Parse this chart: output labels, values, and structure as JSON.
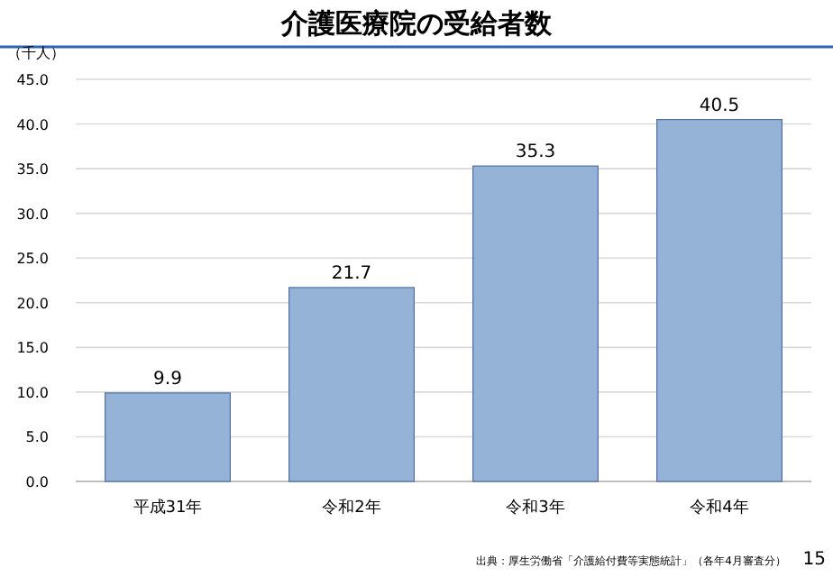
{
  "chart_data": {
    "type": "bar",
    "title": "介護医療院の受給者数",
    "ylabel": "（千人）",
    "categories": [
      "平成31年",
      "令和2年",
      "令和3年",
      "令和4年"
    ],
    "values": [
      9.9,
      21.7,
      35.3,
      40.5
    ],
    "color": "#95b3d7",
    "ylim": [
      0,
      45
    ],
    "yticks": [
      {
        "value": 0,
        "label": "0.0"
      },
      {
        "value": 5,
        "label": "5.0"
      },
      {
        "value": 10,
        "label": "10.0"
      },
      {
        "value": 15,
        "label": "15.0"
      },
      {
        "value": 20,
        "label": "20.0"
      },
      {
        "value": 25,
        "label": "25.0"
      },
      {
        "value": 30,
        "label": "30.0"
      },
      {
        "value": 35,
        "label": "35.0"
      },
      {
        "value": 40,
        "label": "40.0"
      },
      {
        "value": 45,
        "label": "45.0"
      }
    ],
    "grid": "y",
    "data_labels": true,
    "annotations": [
      "出典：厚生労働省「介護給付費等実態統計」（各年4月審査分）",
      "15"
    ]
  }
}
